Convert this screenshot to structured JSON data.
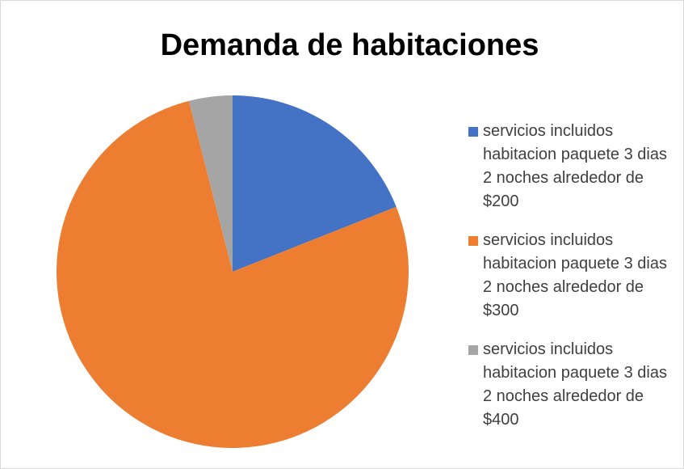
{
  "chart_data": {
    "type": "pie",
    "title": "Demanda de habitaciones",
    "categories": [
      "servicios incluidos habitacion paquete 3 dias 2 noches alrededor de $200",
      "servicios incluidos habitacion paquete 3 dias 2 noches alrededor de $300",
      "servicios incluidos habitacion paquete 3 dias 2 noches alrededor de $400"
    ],
    "values": [
      19,
      77,
      4
    ],
    "colors": [
      "#4472c4",
      "#ed7d31",
      "#a5a5a5"
    ],
    "legend": "right"
  }
}
